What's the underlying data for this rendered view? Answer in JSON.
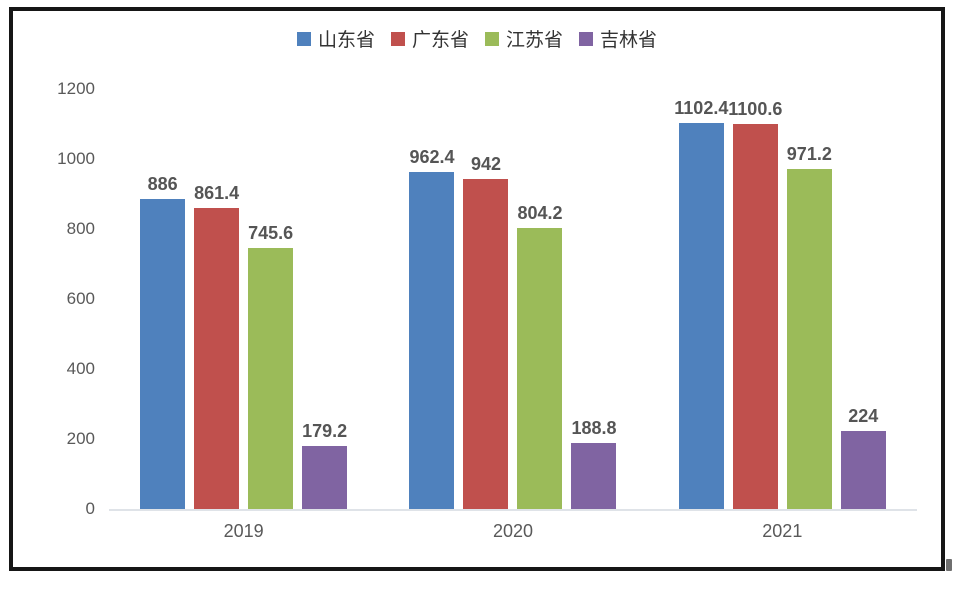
{
  "chart_data": {
    "type": "bar",
    "title": "",
    "categories": [
      "2019",
      "2020",
      "2021"
    ],
    "series": [
      {
        "name": "山东省",
        "color": "#4F81BD",
        "values": [
          886,
          962.4,
          1102.4
        ],
        "labels": [
          "886",
          "962.4",
          "1102.4"
        ]
      },
      {
        "name": "广东省",
        "color": "#C0504D",
        "values": [
          861.4,
          942,
          1100.6
        ],
        "labels": [
          "861.4",
          "942",
          "1100.6"
        ]
      },
      {
        "name": "江苏省",
        "color": "#9BBB59",
        "values": [
          745.6,
          804.2,
          971.2
        ],
        "labels": [
          "745.6",
          "804.2",
          "971.2"
        ]
      },
      {
        "name": "吉林省",
        "color": "#8064A2",
        "values": [
          179.2,
          188.8,
          224
        ],
        "labels": [
          "179.2",
          "188.8",
          "224"
        ]
      }
    ],
    "xlabel": "",
    "ylabel": "",
    "ylim": [
      0,
      1200
    ],
    "yticks": [
      "0",
      "200",
      "400",
      "600",
      "800",
      "1000",
      "1200"
    ],
    "ytick_values": [
      0,
      200,
      400,
      600,
      800,
      1000,
      1200
    ],
    "legend_position": "top",
    "grid": false,
    "frame_border_color": "#161616",
    "axis_line_color": "#dfe3e8",
    "tick_text_color": "#595959",
    "data_label_color": "#555555"
  }
}
